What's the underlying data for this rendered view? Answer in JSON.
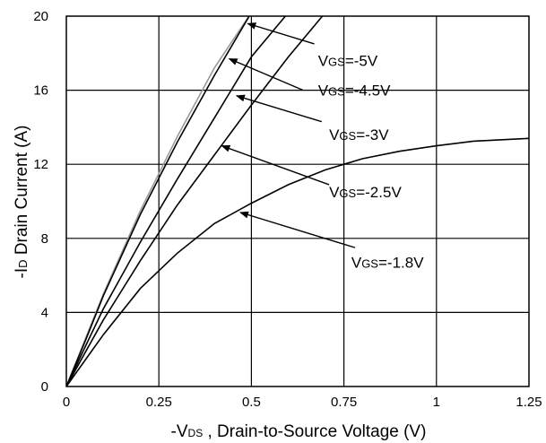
{
  "chart_data": {
    "type": "line",
    "title": "",
    "xlabel": {
      "prefix": "-V",
      "sub": "DS",
      "suffix": " , Drain-to-Source Voltage (V)"
    },
    "ylabel": {
      "prefix": "-I",
      "sub": "D",
      "suffix": " Drain Current (A)"
    },
    "xlim": [
      0,
      1.25
    ],
    "ylim": [
      0,
      20
    ],
    "x_ticks": [
      "0",
      "0.25",
      "0.5",
      "0.75",
      "1",
      "1.25"
    ],
    "y_ticks": [
      "0",
      "4",
      "8",
      "12",
      "16",
      "20"
    ],
    "grid": true,
    "series": [
      {
        "name": "VGS=-5V",
        "color": "#999999",
        "x": [
          0,
          0.05,
          0.1,
          0.2,
          0.3,
          0.4,
          0.5
        ],
        "y": [
          0,
          2.5,
          5,
          9.5,
          13.5,
          17.2,
          20.2
        ]
      },
      {
        "name": "VGS=-4.5V",
        "color": "#000000",
        "x": [
          0,
          0.05,
          0.1,
          0.2,
          0.3,
          0.4,
          0.5
        ],
        "y": [
          0,
          2.4,
          4.9,
          9.3,
          13.2,
          16.8,
          20.2
        ]
      },
      {
        "name": "VGS=-3V",
        "color": "#000000",
        "x": [
          0,
          0.05,
          0.1,
          0.2,
          0.3,
          0.4,
          0.5,
          0.6
        ],
        "y": [
          0,
          2.1,
          4.2,
          7.8,
          11.2,
          14.5,
          17.8,
          20.2
        ]
      },
      {
        "name": "VGS=-2.5V",
        "color": "#000000",
        "x": [
          0,
          0.05,
          0.1,
          0.2,
          0.3,
          0.4,
          0.5,
          0.6,
          0.7
        ],
        "y": [
          0,
          1.8,
          3.6,
          6.8,
          9.8,
          12.5,
          15.2,
          17.8,
          20.2
        ]
      },
      {
        "name": "VGS=-1.8V",
        "color": "#000000",
        "x": [
          0,
          0.05,
          0.1,
          0.2,
          0.3,
          0.4,
          0.5,
          0.6,
          0.7,
          0.8,
          0.9,
          1.0,
          1.1,
          1.25
        ],
        "y": [
          0,
          1.4,
          2.8,
          5.3,
          7.2,
          8.8,
          9.9,
          10.9,
          11.7,
          12.3,
          12.7,
          13.0,
          13.25,
          13.4
        ]
      }
    ],
    "annotations": [
      {
        "prefix": "V",
        "sub": "GS",
        "suffix": "=-5V",
        "arrow_to": [
          0.49,
          19.6
        ],
        "arrow_from": [
          0.67,
          18.5
        ],
        "label_at": [
          0.68,
          17.6
        ]
      },
      {
        "prefix": "V",
        "sub": "GS",
        "suffix": "=-4.5V",
        "arrow_to": [
          0.44,
          17.7
        ],
        "arrow_from": [
          0.64,
          16.0
        ],
        "label_at": [
          0.68,
          16.0
        ]
      },
      {
        "prefix": "V",
        "sub": "GS",
        "suffix": "=-3V",
        "arrow_to": [
          0.46,
          15.7
        ],
        "arrow_from": [
          0.69,
          14.3
        ],
        "label_at": [
          0.71,
          13.6
        ]
      },
      {
        "prefix": "V",
        "sub": "GS",
        "suffix": "=-2.5V",
        "arrow_to": [
          0.42,
          13.0
        ],
        "arrow_from": [
          0.71,
          10.9
        ],
        "label_at": [
          0.71,
          10.5
        ]
      },
      {
        "prefix": "V",
        "sub": "GS",
        "suffix": "=-1.8V",
        "arrow_to": [
          0.47,
          9.4
        ],
        "arrow_from": [
          0.78,
          7.5
        ],
        "label_at": [
          0.77,
          6.7
        ]
      }
    ]
  }
}
